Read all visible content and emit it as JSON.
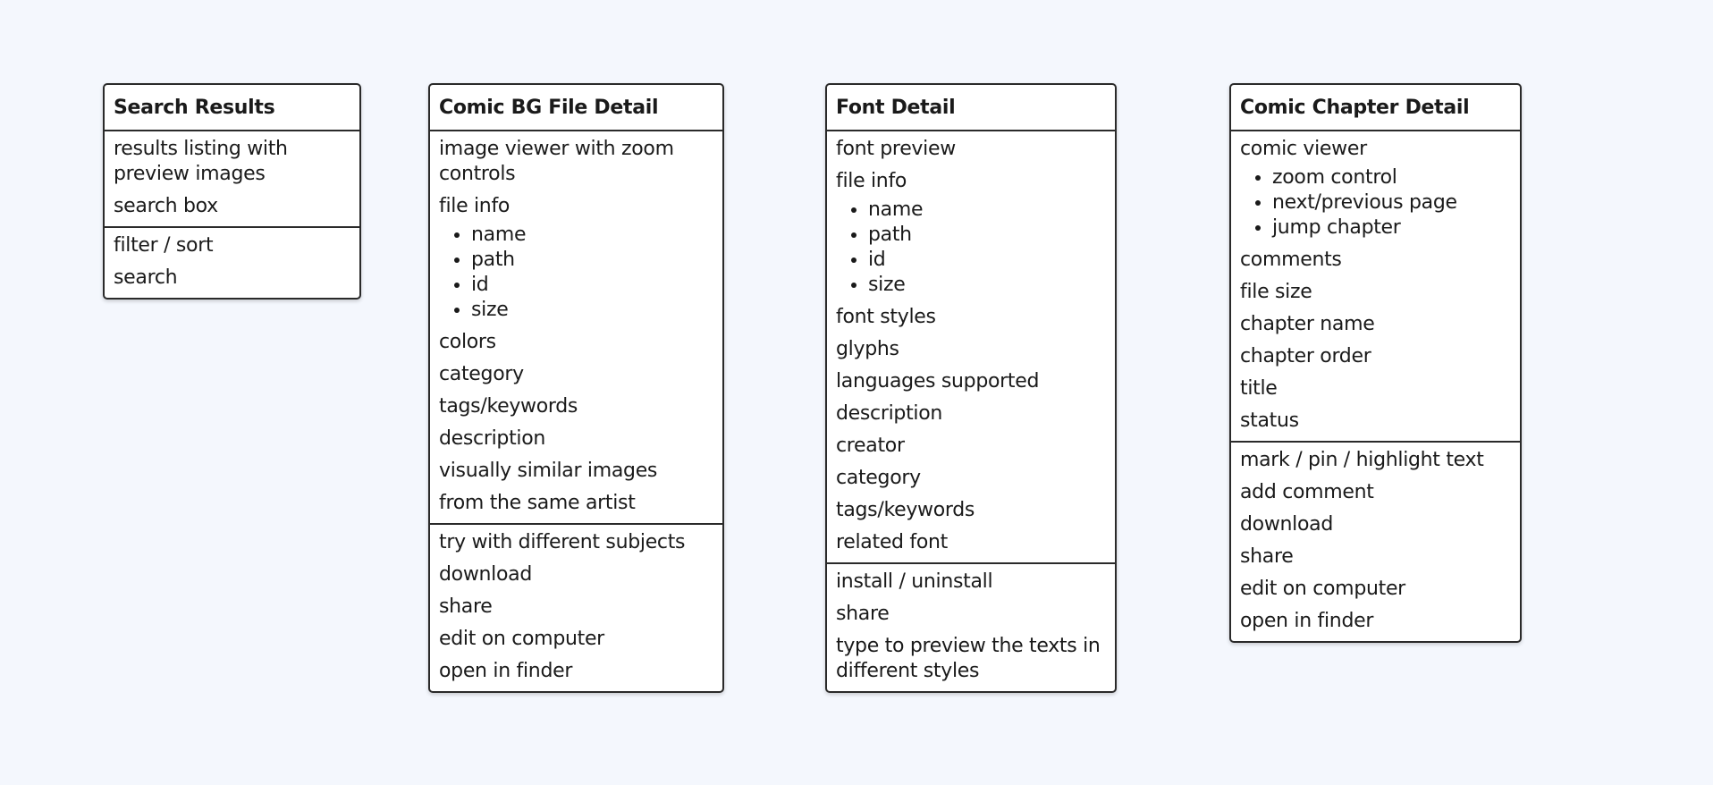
{
  "cards": [
    {
      "title": "Search Results",
      "sections": [
        [
          {
            "text": "results listing with preview images"
          },
          {
            "text": "search box"
          }
        ],
        [
          {
            "text": "filter / sort"
          },
          {
            "text": "search"
          }
        ]
      ]
    },
    {
      "title": "Comic BG File Detail",
      "sections": [
        [
          {
            "text": "image viewer with zoom controls"
          },
          {
            "text": "file info",
            "bullets": [
              "name",
              "path",
              "id",
              "size"
            ]
          },
          {
            "text": "colors"
          },
          {
            "text": "category"
          },
          {
            "text": "tags/keywords"
          },
          {
            "text": "description"
          },
          {
            "text": "visually similar images"
          },
          {
            "text": "from the same artist"
          }
        ],
        [
          {
            "text": "try with different subjects"
          },
          {
            "text": "download"
          },
          {
            "text": "share"
          },
          {
            "text": "edit on computer"
          },
          {
            "text": "open in finder"
          }
        ]
      ]
    },
    {
      "title": "Font Detail",
      "sections": [
        [
          {
            "text": "font preview"
          },
          {
            "text": "file info",
            "bullets": [
              "name",
              "path",
              "id",
              "size"
            ]
          },
          {
            "text": "font styles"
          },
          {
            "text": "glyphs"
          },
          {
            "text": "languages supported"
          },
          {
            "text": "description"
          },
          {
            "text": "creator"
          },
          {
            "text": "category"
          },
          {
            "text": "tags/keywords"
          },
          {
            "text": "related font"
          }
        ],
        [
          {
            "text": "install / uninstall"
          },
          {
            "text": "share"
          },
          {
            "text": "type to preview the texts in different styles"
          }
        ]
      ]
    },
    {
      "title": "Comic Chapter Detail",
      "sections": [
        [
          {
            "text": "comic viewer",
            "bullets": [
              "zoom control",
              "next/previous page",
              "jump chapter"
            ]
          },
          {
            "text": "comments"
          },
          {
            "text": "file size"
          },
          {
            "text": "chapter name"
          },
          {
            "text": "chapter order"
          },
          {
            "text": "title"
          },
          {
            "text": "status"
          }
        ],
        [
          {
            "text": "mark / pin / highlight text"
          },
          {
            "text": "add comment"
          },
          {
            "text": "download"
          },
          {
            "text": "share"
          },
          {
            "text": "edit on computer"
          },
          {
            "text": "open in finder"
          }
        ]
      ]
    }
  ]
}
